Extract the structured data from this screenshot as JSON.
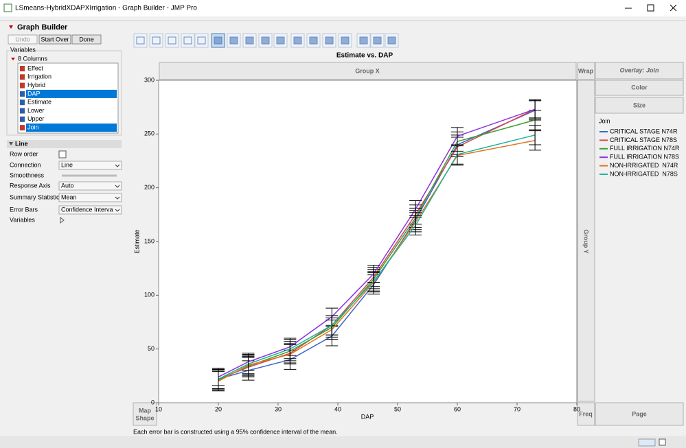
{
  "window": {
    "title": "LSmeans-HybridXDAPXIrrigation - Graph Builder - JMP Pro"
  },
  "panel": {
    "header": "Graph Builder",
    "buttons": [
      "Undo",
      "Start Over",
      "Done"
    ],
    "variables_label": "Variables",
    "columns_label": "8 Columns",
    "columns": [
      "Effect",
      "Irrigation",
      "Hybrid",
      "DAP",
      "Estimate",
      "Lower",
      "Upper",
      "Join"
    ],
    "section": "Line",
    "options": [
      [
        "Row order",
        null
      ],
      [
        "Connection",
        "Line"
      ],
      [
        "Smoothness",
        null
      ],
      [
        "Response Axis",
        "Auto"
      ],
      [
        "Summary Statistic",
        "Mean"
      ],
      [
        "Error Bars",
        "Confidence Interva"
      ],
      [
        "Variables",
        null
      ]
    ]
  },
  "zones": {
    "group_x": "Group X",
    "wrap": "Wrap",
    "overlay": "Overlay: Join",
    "color": "Color",
    "size": "Size",
    "group_y": "Group Y",
    "map_shape_1": "Map",
    "map_shape_2": "Shape",
    "freq": "Freq",
    "page": "Page"
  },
  "footnote": "Each error bar is constructed using a 95% confidence interval of the mean.",
  "chart_data": {
    "type": "line",
    "title": "Estimate vs. DAP",
    "x_label": "DAP",
    "y_label": "Estimate",
    "x": [
      20,
      25,
      32,
      39,
      46,
      53,
      60,
      73
    ],
    "xlim": [
      10,
      80
    ],
    "xticks": [
      10,
      20,
      30,
      40,
      50,
      60,
      70,
      80
    ],
    "ylim": [
      0,
      300
    ],
    "yticks": [
      0,
      50,
      100,
      150,
      200,
      250,
      300
    ],
    "legend_title": "Join",
    "error_color": "#000000",
    "series": [
      {
        "name": "CRITICAL STAGE N74R",
        "color": "#3a66c8",
        "values": [
          22,
          30,
          40,
          62,
          110,
          170,
          240,
          272
        ],
        "errors": [
          9,
          9,
          9,
          9,
          9,
          9,
          9,
          9
        ]
      },
      {
        "name": "CRITICAL STAGE N78S",
        "color": "#d8464b",
        "values": [
          22,
          33,
          46,
          72,
          117,
          175,
          238,
          273
        ],
        "errors": [
          9,
          9,
          9,
          9,
          9,
          9,
          9,
          9
        ]
      },
      {
        "name": "FULL IRRIGATION N74R",
        "color": "#3aa035",
        "values": [
          21,
          34,
          48,
          70,
          115,
          172,
          243,
          263
        ],
        "errors": [
          9,
          9,
          9,
          9,
          9,
          9,
          9,
          9
        ]
      },
      {
        "name": "FULL IRRIGATION N78S",
        "color": "#8c32e0",
        "values": [
          24,
          38,
          52,
          80,
          120,
          180,
          248,
          273
        ],
        "errors": [
          8,
          8,
          8,
          8,
          8,
          8,
          8,
          8
        ]
      },
      {
        "name": "NON-IRRIGATED  N74R",
        "color": "#e2731e",
        "values": [
          20,
          35,
          45,
          68,
          112,
          168,
          230,
          244
        ],
        "errors": [
          9,
          9,
          9,
          9,
          9,
          9,
          9,
          9
        ]
      },
      {
        "name": "NON-IRRIGATED  N78S",
        "color": "#1fb49a",
        "values": [
          22,
          36,
          50,
          72,
          113,
          165,
          231,
          249
        ],
        "errors": [
          9,
          9,
          9,
          9,
          9,
          9,
          9,
          9
        ]
      }
    ]
  }
}
